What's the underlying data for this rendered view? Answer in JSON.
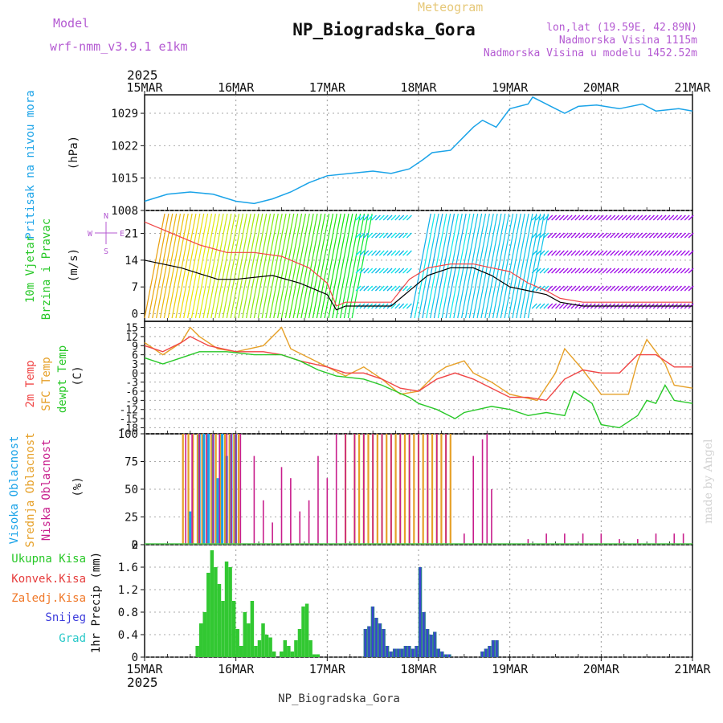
{
  "header": {
    "title": "NP_Biogradska_Gora",
    "subtitle": "Meteogram",
    "model_label": "Model",
    "model_name": "wrf-nmm_v3.9.1  e1km",
    "lonlat": "lon,lat (19.59E, 42.89N)",
    "elevation": "Nadmorska Visina 1115m",
    "model_elevation": "Nadmorska Visina u modelu 1452.52m",
    "year_top": "2025",
    "year_bottom": "2025",
    "footer_station": "NP_Biogradska_Gora",
    "credit": "made by Angel"
  },
  "colors": {
    "pressure": "#1aa3e8",
    "temp2m": "#f04646",
    "sfc_temp": "#e6a028",
    "dewpt": "#28c828",
    "high_cloud": "#1aa3e8",
    "mid_cloud": "#e6a028",
    "low_cloud": "#c81e8c",
    "total_precip": "#32c832",
    "conv_precip": "#e63c3c",
    "snow": "#3c3cdc",
    "wind_speed": "#000000",
    "wind_gust": "#f04646",
    "purple_text": "#b45ad2"
  },
  "chart_data": [
    {
      "type": "line",
      "panel": "pressure",
      "ylabel_1": "Pritisak na nivou mora",
      "ylabel_2": "(hPa)",
      "x_ticks": [
        "15MAR",
        "16MAR",
        "17MAR",
        "18MAR",
        "19MAR",
        "20MAR",
        "21MAR"
      ],
      "xlim_days": [
        0,
        6
      ],
      "yticks": [
        "1008",
        "1015",
        "1022",
        "1029"
      ],
      "ylim": [
        1008,
        1033
      ],
      "series": [
        {
          "x": [
            0,
            0.25,
            0.5,
            0.75,
            1.0,
            1.2,
            1.4,
            1.6,
            1.8,
            2.0,
            2.25,
            2.5,
            2.7,
            2.9,
            3.05,
            3.15,
            3.35,
            3.5,
            3.6,
            3.7,
            3.85,
            4.0,
            4.2,
            4.25,
            4.45,
            4.6,
            4.75,
            4.95,
            5.2,
            5.45,
            5.6,
            5.85,
            6.0
          ],
          "y": [
            1010,
            1011.5,
            1012,
            1011.5,
            1010,
            1009.5,
            1010.5,
            1012,
            1014,
            1015.5,
            1016,
            1016.5,
            1016,
            1017,
            1019,
            1020.5,
            1021,
            1024,
            1026,
            1027.5,
            1026,
            1030,
            1031,
            1032.5,
            1030.5,
            1029,
            1030.5,
            1030.8,
            1030,
            1031,
            1029.5,
            1030,
            1029.5
          ]
        }
      ]
    },
    {
      "type": "line",
      "panel": "wind",
      "ylabel_1": "10m Vjetar",
      "ylabel_2": "Brzina i Pravac",
      "ylabel_3": "(m/s)",
      "compass": [
        "N",
        "W",
        "E",
        "S"
      ],
      "yticks": [
        "0",
        "7",
        "14",
        "21"
      ],
      "ylim": [
        -2,
        27
      ],
      "series": [
        {
          "name": "speed",
          "x": [
            0,
            0.4,
            0.8,
            1.0,
            1.4,
            1.7,
            2.0,
            2.1,
            2.2,
            2.6,
            2.7,
            2.9,
            3.1,
            3.35,
            3.6,
            3.8,
            4.0,
            4.2,
            4.4,
            4.55,
            4.8,
            5.0,
            5.3,
            5.6,
            6.0
          ],
          "y": [
            14,
            12,
            9,
            9,
            10,
            8,
            5,
            1,
            2,
            2,
            2,
            6,
            10,
            12,
            12,
            10,
            7,
            6,
            5,
            3,
            2,
            2,
            2,
            2,
            2
          ]
        },
        {
          "name": "gust",
          "x": [
            0,
            0.3,
            0.6,
            0.9,
            1.2,
            1.5,
            1.8,
            2.0,
            2.1,
            2.2,
            2.6,
            2.7,
            2.9,
            3.1,
            3.35,
            3.6,
            3.8,
            4.0,
            4.2,
            4.4,
            4.55,
            4.8,
            5.0,
            5.3,
            5.6,
            6.0
          ],
          "y": [
            24,
            21,
            18,
            16,
            16,
            15,
            12,
            8,
            2,
            3,
            3,
            3,
            9,
            12,
            13,
            13,
            12,
            11,
            8,
            6,
            4,
            3,
            3,
            3,
            3,
            3
          ]
        }
      ]
    },
    {
      "type": "line",
      "panel": "temperature",
      "ylabel_1": "2m Temp",
      "ylabel_2": "SFC Temp",
      "ylabel_3": "dewpt Temp",
      "ylabel_4": "(C)",
      "yticks": [
        "15",
        "12",
        "9",
        "6",
        "3",
        "0",
        "-3",
        "-6",
        "-9",
        "-12",
        "-15",
        "-18"
      ],
      "ylim": [
        -20,
        17
      ],
      "series": [
        {
          "name": "2m Temp",
          "x": [
            0,
            0.2,
            0.4,
            0.5,
            0.7,
            1.0,
            1.3,
            1.5,
            1.7,
            2.0,
            2.2,
            2.4,
            2.6,
            2.8,
            3.0,
            3.2,
            3.4,
            3.6,
            3.8,
            4.0,
            4.2,
            4.4,
            4.6,
            4.8,
            5.0,
            5.2,
            5.4,
            5.6,
            5.8,
            6.0
          ],
          "y": [
            9,
            7,
            10,
            12,
            9,
            7,
            7,
            6,
            4,
            2,
            0,
            0,
            -2,
            -5,
            -6,
            -2,
            0,
            -2,
            -5,
            -8,
            -8,
            -9,
            -2,
            1,
            0,
            0,
            6,
            6,
            2,
            2
          ]
        },
        {
          "name": "SFC Temp",
          "x": [
            0,
            0.2,
            0.4,
            0.5,
            0.6,
            0.8,
            1.0,
            1.3,
            1.5,
            1.6,
            1.8,
            2.0,
            2.2,
            2.4,
            2.6,
            2.8,
            3.0,
            3.1,
            3.2,
            3.3,
            3.5,
            3.6,
            3.8,
            4.0,
            4.3,
            4.5,
            4.6,
            4.8,
            5.0,
            5.3,
            5.4,
            5.5,
            5.7,
            5.8,
            6.0
          ],
          "y": [
            10,
            6,
            10,
            15,
            12,
            8,
            7,
            9,
            15,
            8,
            5,
            2,
            -1,
            2,
            -2,
            -7,
            -6,
            -3,
            0,
            2,
            4,
            0,
            -3,
            -7,
            -9,
            0,
            8,
            1,
            -7,
            -7,
            4,
            11,
            3,
            -4,
            -5
          ]
        },
        {
          "name": "dewpt Temp",
          "x": [
            0,
            0.2,
            0.4,
            0.6,
            0.9,
            1.2,
            1.5,
            1.7,
            1.9,
            2.1,
            2.4,
            2.6,
            2.9,
            3.0,
            3.2,
            3.4,
            3.5,
            3.8,
            4.0,
            4.2,
            4.4,
            4.6,
            4.7,
            4.9,
            5.0,
            5.2,
            5.4,
            5.5,
            5.6,
            5.7,
            5.8,
            6.0
          ],
          "y": [
            5,
            3,
            5,
            7,
            7,
            6,
            6,
            4,
            1,
            -1,
            -2,
            -4,
            -8,
            -10,
            -12,
            -15,
            -13,
            -11,
            -12,
            -14,
            -13,
            -14,
            -6,
            -10,
            -17,
            -18,
            -14,
            -9,
            -10,
            -4,
            -9,
            -10
          ]
        }
      ]
    },
    {
      "type": "bar",
      "panel": "cloud",
      "ylabel_1": "Visoka Oblacnost",
      "ylabel_2": "Srednja Oblacnost",
      "ylabel_3": "Niska Oblacnost",
      "ylabel_4": "(%)",
      "yticks": [
        "0",
        "25",
        "50",
        "75",
        "100"
      ],
      "ylim": [
        0,
        100
      ],
      "series": [
        {
          "name": "Srednja Oblacnost",
          "x": [
            0.42,
            0.48,
            0.53,
            0.58,
            0.63,
            0.68,
            0.73,
            0.78,
            0.83,
            0.88,
            0.93,
            0.98,
            1.03,
            2.2,
            2.3,
            2.35,
            2.4,
            2.45,
            2.5,
            2.55,
            2.6,
            2.65,
            2.7,
            2.75,
            2.8,
            2.85,
            2.9,
            2.95,
            3.0,
            3.05,
            3.1,
            3.15,
            3.2,
            3.25,
            3.3,
            3.35
          ],
          "y": [
            100,
            100,
            100,
            100,
            100,
            100,
            100,
            100,
            100,
            100,
            100,
            100,
            100,
            100,
            100,
            100,
            100,
            100,
            100,
            100,
            100,
            100,
            100,
            100,
            100,
            100,
            100,
            100,
            100,
            100,
            100,
            100,
            100,
            100,
            100,
            100
          ]
        },
        {
          "name": "Visoka Oblacnost",
          "x": [
            0.5,
            0.6,
            0.65,
            0.7,
            0.75,
            0.8,
            0.85,
            0.9,
            0.95,
            1.0
          ],
          "y": [
            30,
            100,
            100,
            100,
            100,
            60,
            100,
            80,
            100,
            100
          ]
        },
        {
          "name": "Niska Oblacnost",
          "x": [
            0.45,
            0.52,
            0.6,
            0.68,
            0.75,
            0.82,
            0.9,
            0.95,
            1.0,
            1.05,
            1.2,
            1.3,
            1.4,
            1.5,
            1.6,
            1.7,
            1.8,
            1.9,
            2.0,
            2.1,
            2.2,
            2.3,
            2.4,
            2.5,
            2.6,
            2.7,
            2.8,
            2.9,
            3.0,
            3.1,
            3.2,
            3.3,
            3.5,
            3.6,
            3.7,
            3.75,
            3.8,
            4.2,
            4.4,
            4.6,
            4.8,
            5.0,
            5.2,
            5.4,
            5.6,
            5.8,
            5.9
          ],
          "y": [
            100,
            100,
            100,
            100,
            100,
            100,
            100,
            100,
            100,
            100,
            80,
            40,
            20,
            70,
            60,
            30,
            40,
            80,
            60,
            100,
            100,
            100,
            100,
            100,
            100,
            100,
            100,
            100,
            100,
            100,
            100,
            100,
            10,
            80,
            95,
            100,
            50,
            5,
            10,
            10,
            10,
            10,
            5,
            5,
            10,
            10,
            10
          ]
        }
      ]
    },
    {
      "type": "bar",
      "panel": "precip",
      "ylabel_1": "1hr Precip (mm)",
      "legend": [
        "Ukupna Kisa",
        "Konvek.Kisa",
        "Zaledj.Kisa",
        "Snijeg",
        "Grad"
      ],
      "legend_colors": [
        "#28c828",
        "#e63c3c",
        "#f07828",
        "#3c3cdc",
        "#28c8c8"
      ],
      "yticks": [
        "0",
        "0.4",
        "0.8",
        "1.2",
        "1.6",
        "2"
      ],
      "ylim": [
        0,
        2
      ],
      "series": [
        {
          "name": "Ukupna Kisa",
          "x": [
            0.58,
            0.62,
            0.66,
            0.7,
            0.74,
            0.78,
            0.82,
            0.86,
            0.9,
            0.94,
            0.98,
            1.02,
            1.06,
            1.1,
            1.14,
            1.18,
            1.22,
            1.26,
            1.3,
            1.34,
            1.38,
            1.42,
            1.5,
            1.54,
            1.58,
            1.62,
            1.66,
            1.7,
            1.74,
            1.78,
            1.82,
            1.86,
            1.9
          ],
          "y": [
            0.2,
            0.6,
            0.8,
            1.5,
            1.9,
            1.6,
            1.3,
            1.0,
            1.7,
            1.6,
            1.0,
            0.5,
            0.2,
            0.8,
            0.6,
            1.0,
            0.2,
            0.3,
            0.6,
            0.4,
            0.35,
            0.1,
            0.1,
            0.3,
            0.2,
            0.1,
            0.3,
            0.5,
            0.9,
            0.95,
            0.3,
            0.05,
            0.05
          ]
        },
        {
          "name": "Snijeg",
          "x": [
            2.42,
            2.46,
            2.5,
            2.54,
            2.58,
            2.62,
            2.66,
            2.7,
            2.74,
            2.78,
            2.82,
            2.86,
            2.9,
            2.94,
            2.98,
            3.02,
            3.06,
            3.1,
            3.14,
            3.18,
            3.22,
            3.26,
            3.3,
            3.34,
            3.7,
            3.74,
            3.78,
            3.82,
            3.86
          ],
          "y": [
            0.5,
            0.55,
            0.9,
            0.7,
            0.6,
            0.5,
            0.2,
            0.1,
            0.15,
            0.15,
            0.15,
            0.2,
            0.2,
            0.15,
            0.2,
            1.6,
            0.8,
            0.5,
            0.4,
            0.45,
            0.15,
            0.1,
            0.05,
            0.05,
            0.1,
            0.15,
            0.2,
            0.3,
            0.3
          ]
        }
      ]
    }
  ]
}
